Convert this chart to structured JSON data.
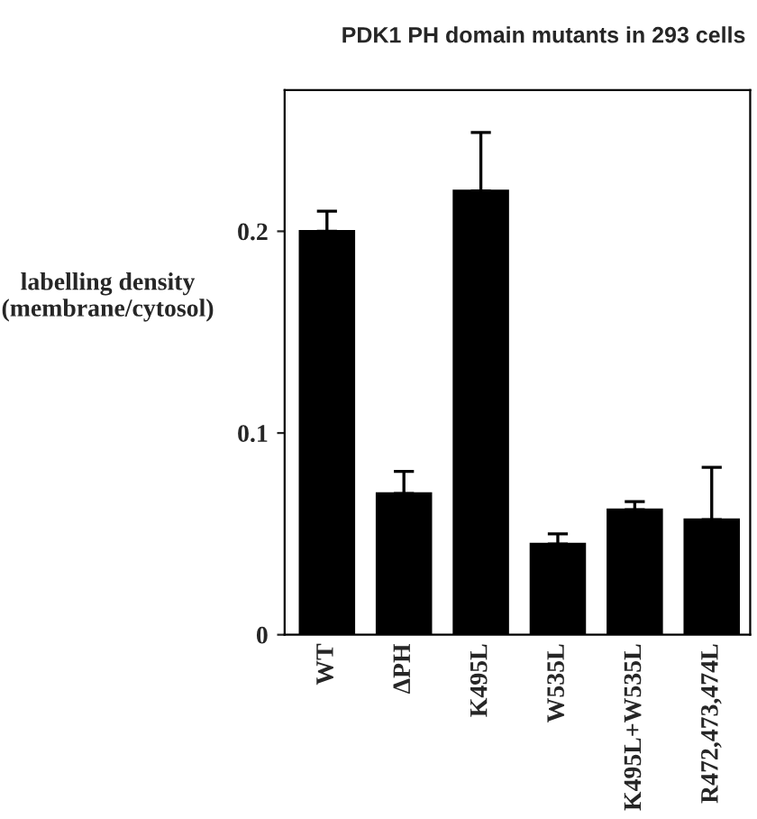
{
  "chart_data": {
    "type": "bar",
    "title": "PDK1 PH domain mutants in 293 cells",
    "ylabel": "labelling density\n(membrane/cytosol)",
    "categories": [
      "WT",
      "ΔPH",
      "K495L",
      "W535L",
      "K495L+W535L",
      "R472,473,474L"
    ],
    "values": [
      0.2,
      0.07,
      0.22,
      0.045,
      0.062,
      0.057
    ],
    "errors": [
      [
        0.2,
        0.21
      ],
      [
        0.07,
        0.081
      ],
      [
        0.22,
        0.249
      ],
      [
        0.045,
        0.05
      ],
      [
        0.062,
        0.066
      ],
      [
        0.057,
        0.083
      ]
    ],
    "color": "#000000",
    "ylim": [
      0,
      0.27
    ],
    "yticks": [
      0,
      0.1,
      0.2
    ],
    "grid": false,
    "legend": false
  }
}
